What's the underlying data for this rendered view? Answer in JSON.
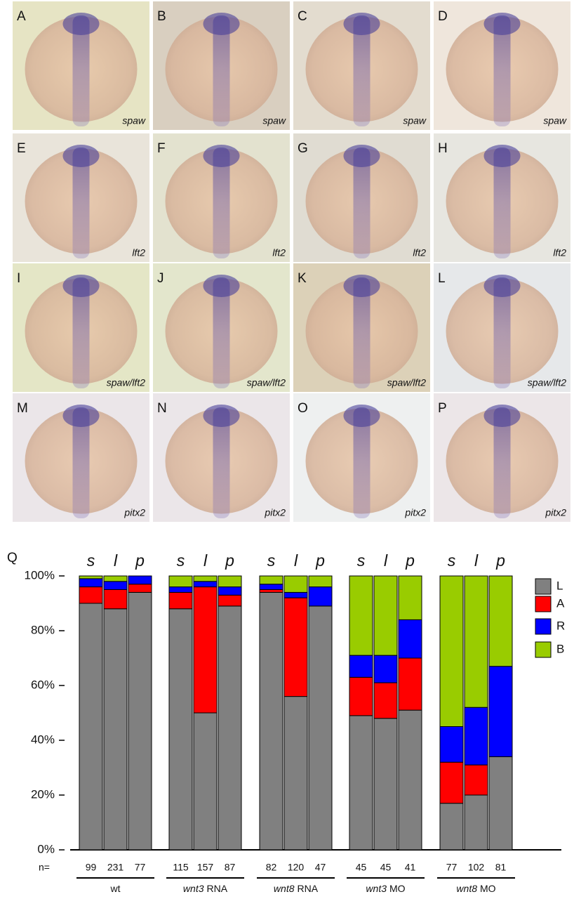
{
  "panels": [
    {
      "letter": "A",
      "gene": "spaw"
    },
    {
      "letter": "B",
      "gene": "spaw"
    },
    {
      "letter": "C",
      "gene": "spaw"
    },
    {
      "letter": "D",
      "gene": "spaw"
    },
    {
      "letter": "E",
      "gene": "lft2"
    },
    {
      "letter": "F",
      "gene": "lft2"
    },
    {
      "letter": "G",
      "gene": "lft2"
    },
    {
      "letter": "H",
      "gene": "lft2"
    },
    {
      "letter": "I",
      "gene": "spaw/lft2"
    },
    {
      "letter": "J",
      "gene": "spaw/lft2"
    },
    {
      "letter": "K",
      "gene": "spaw/lft2"
    },
    {
      "letter": "L",
      "gene": "spaw/lft2"
    },
    {
      "letter": "M",
      "gene": "pitx2"
    },
    {
      "letter": "N",
      "gene": "pitx2"
    },
    {
      "letter": "O",
      "gene": "pitx2"
    },
    {
      "letter": "P",
      "gene": "pitx2"
    }
  ],
  "chart_data": {
    "type": "bar",
    "stacked": true,
    "panel_label": "Q",
    "categories": [
      "s",
      "l",
      "p",
      "s",
      "l",
      "p",
      "s",
      "l",
      "p",
      "s",
      "l",
      "p",
      "s",
      "l",
      "p"
    ],
    "n_label": "n=",
    "n": [
      99,
      231,
      77,
      115,
      157,
      87,
      82,
      120,
      47,
      45,
      45,
      41,
      77,
      102,
      81
    ],
    "groups": [
      {
        "gene": "wt",
        "suffix": ""
      },
      {
        "gene": "wnt3",
        "suffix": "RNA"
      },
      {
        "gene": "wnt8",
        "suffix": "RNA"
      },
      {
        "gene": "wnt3",
        "suffix": "MO"
      },
      {
        "gene": "wnt8",
        "suffix": "MO"
      }
    ],
    "series": [
      {
        "name": "L",
        "color": "#808080",
        "values": [
          90,
          88,
          94,
          88,
          50,
          89,
          94,
          56,
          89,
          49,
          48,
          51,
          17,
          20,
          34
        ]
      },
      {
        "name": "A",
        "color": "#ff0000",
        "values": [
          6,
          7,
          3,
          6,
          46,
          4,
          1,
          36,
          0,
          14,
          13,
          19,
          15,
          11,
          0
        ]
      },
      {
        "name": "R",
        "color": "#0000ff",
        "values": [
          3,
          3,
          3,
          2,
          2,
          3,
          2,
          2,
          7,
          8,
          10,
          14,
          13,
          21,
          33
        ]
      },
      {
        "name": "B",
        "color": "#99cc00",
        "values": [
          1,
          2,
          0,
          4,
          2,
          4,
          3,
          6,
          4,
          29,
          29,
          16,
          55,
          48,
          33
        ]
      }
    ],
    "ylim": [
      0,
      100
    ],
    "yticks": [
      {
        "value": 0,
        "label": "0%"
      },
      {
        "value": 20,
        "label": "20%"
      },
      {
        "value": 40,
        "label": "40%"
      },
      {
        "value": 60,
        "label": "60%"
      },
      {
        "value": 80,
        "label": "80%"
      },
      {
        "value": 100,
        "label": "100%"
      }
    ],
    "legend": "right"
  }
}
